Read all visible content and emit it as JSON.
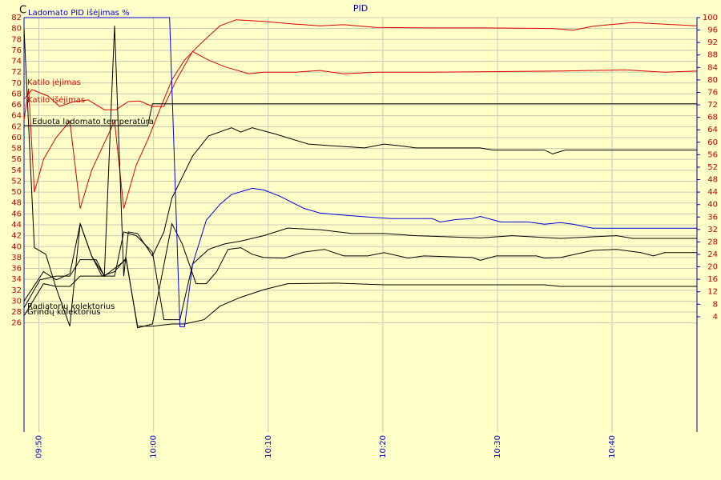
{
  "chart_data": {
    "type": "line",
    "title": "PID",
    "y_label": "C",
    "xlim": [
      588.7,
      647.4
    ],
    "xticks": [
      {
        "value": 590,
        "label": "09:50"
      },
      {
        "value": 600,
        "label": "10:00"
      },
      {
        "value": 610,
        "label": "10:10"
      },
      {
        "value": 620,
        "label": "10:20"
      },
      {
        "value": 630,
        "label": "10:30"
      },
      {
        "value": 640,
        "label": "10:40"
      }
    ],
    "ylim": [
      6,
      82
    ],
    "yticks": [
      26,
      28,
      30,
      32,
      34,
      36,
      38,
      40,
      42,
      44,
      46,
      48,
      50,
      52,
      54,
      56,
      58,
      60,
      62,
      64,
      66,
      68,
      70,
      72,
      74,
      76,
      78,
      80,
      82
    ],
    "y2lim": [
      -33,
      100
    ],
    "y2ticks": [
      4,
      8,
      12,
      16,
      20,
      24,
      28,
      32,
      36,
      40,
      44,
      48,
      52,
      56,
      60,
      64,
      68,
      72,
      76,
      80,
      84,
      88,
      92,
      96,
      100
    ],
    "grid": true,
    "series": [
      {
        "name": "Katilo įėjimas",
        "color": "#e00000",
        "x": [
          588.7,
          589.1,
          589.6,
          590.4,
          591.5,
          592.7,
          593.6,
          594.6,
          595.7,
          596.6,
          597.4,
          598.5,
          599.5,
          600.6,
          601.6,
          602.7,
          603.7,
          604.8,
          605.8,
          607.2,
          609.6,
          612.4,
          614.5,
          616.6,
          619.4,
          624.3,
          628.5,
          634.8,
          636.6,
          638.3,
          641.8,
          644.6,
          647.4
        ],
        "values": [
          63.2,
          69,
          50,
          56,
          60,
          63,
          47,
          54,
          59,
          63,
          47,
          55,
          59.6,
          65.4,
          70.6,
          74.2,
          76.4,
          78.6,
          80.5,
          81.6,
          81.3,
          80.8,
          80.5,
          80.7,
          80.2,
          80.1,
          80.1,
          80,
          79.7,
          80.4,
          81.1,
          80.8,
          80.5
        ]
      },
      {
        "name": "Katilo išėjimas",
        "color": "#e00000",
        "x": [
          588.7,
          589.4,
          590.8,
          591.8,
          592.9,
          594.3,
          595.7,
          596.7,
          597.8,
          598.8,
          599.9,
          600.9,
          602.0,
          603.4,
          604.8,
          606.2,
          608.3,
          609.6,
          612.4,
          614.5,
          616.6,
          619.4,
          624.3,
          635.5,
          641.1,
          644.6,
          647.4
        ],
        "values": [
          67,
          68.8,
          67.6,
          65.7,
          66.5,
          66.9,
          65.1,
          65.1,
          66.6,
          66.7,
          65.7,
          65.7,
          70.6,
          75.8,
          74.2,
          73,
          71.7,
          72,
          72,
          72.3,
          71.7,
          72,
          72,
          72.2,
          72.4,
          72,
          72.2
        ]
      },
      {
        "name": "Eduota ladomato temperatūra",
        "color": "#000000",
        "x": [
          588.7,
          599.5,
          599.9,
          647.4
        ],
        "values": [
          62.2,
          62.2,
          66.2,
          66.2
        ]
      },
      {
        "name": "Radiatorių kolektorius",
        "color": "#000000",
        "x": [
          588.7,
          589.6,
          590.6,
          591.5,
          592.7,
          593.6,
          594.6,
          595.7,
          596.6,
          597.4,
          597.8,
          598.6,
          599.9,
          600.9,
          601.6,
          603.4,
          604.8,
          606.8,
          607.6,
          608.6,
          610.7,
          613.5,
          615.6,
          618.4,
          620.1,
          621.5,
          622.9,
          628.5,
          629.6,
          634.1,
          634.8,
          635.9,
          647.4
        ],
        "values": [
          80,
          39.8,
          38.6,
          32.4,
          25.4,
          44.2,
          38.3,
          34.6,
          80.5,
          34.6,
          42.7,
          42.4,
          38.3,
          42.7,
          48.9,
          56.6,
          60.3,
          61.8,
          61,
          61.8,
          60.6,
          58.8,
          58.5,
          58.1,
          58.8,
          58.5,
          58.1,
          58.1,
          57.7,
          57.7,
          57,
          57.7,
          57.7
        ]
      },
      {
        "color": "#000000",
        "x": [
          588.7,
          590.1,
          591.5,
          592.7,
          593.6,
          595.0,
          595.7,
          596.6,
          597.4,
          598.5,
          599.9,
          600.9,
          602.3,
          603.4,
          604.8,
          606.2,
          607.6,
          609.6,
          611.7,
          614.5,
          617.3,
          620.1,
          622.9,
          628.5,
          631.3,
          635.5,
          638.3,
          640.4,
          641.8,
          647.4
        ],
        "values": [
          28.8,
          33.9,
          34.6,
          34.6,
          37.6,
          37.6,
          34.6,
          34.6,
          42.7,
          42,
          39,
          26.6,
          26.6,
          36.8,
          39.5,
          40.5,
          41,
          42,
          43.4,
          43.1,
          42.4,
          42.4,
          42,
          41.6,
          42,
          41.5,
          41.8,
          42,
          41.5,
          41.5
        ]
      },
      {
        "name": "Grindų kolektorius",
        "color": "#000000",
        "x": [
          588.7,
          590.4,
          591.5,
          592.7,
          593.6,
          594.6,
          595.5,
          596.6,
          597.6,
          598.6,
          599.9,
          601.6,
          602.5,
          603.7,
          604.6,
          605.5,
          606.5,
          607.6,
          608.6,
          609.6,
          611.4,
          613.1,
          614.9,
          616.6,
          618.7,
          620.1,
          622.2,
          623.6,
          627.8,
          628.5,
          629.9,
          633.4,
          634.1,
          635.5,
          638.3,
          640.4,
          642.5,
          643.6,
          644.6,
          647.4
        ],
        "values": [
          30,
          35.4,
          33.9,
          35,
          44.2,
          38.3,
          34.6,
          35.4,
          37.9,
          25.1,
          25.8,
          44.2,
          40.5,
          33.2,
          33.2,
          35.4,
          39.5,
          39.8,
          38.6,
          38,
          37.9,
          39,
          39.5,
          38.3,
          38.3,
          38.9,
          37.9,
          38.3,
          38,
          37.5,
          38.3,
          38.3,
          37.9,
          38,
          39.3,
          39.5,
          38.9,
          38.3,
          38.9,
          38.9
        ]
      },
      {
        "color": "#000000",
        "x": [
          588.7,
          590.4,
          591.5,
          592.7,
          593.6,
          595.0,
          595.7,
          597.6,
          598.6,
          599.9,
          601.6,
          602.7,
          604.4,
          605.8,
          607.6,
          609.6,
          611.7,
          615.9,
          620.1,
          628.5,
          634.1,
          635.5,
          647.4
        ],
        "values": [
          27.3,
          33.2,
          32.7,
          32.7,
          34.6,
          34.6,
          34.6,
          37.6,
          25.4,
          25.4,
          25.8,
          25.8,
          26.6,
          29.1,
          30.7,
          32.1,
          33.2,
          33.3,
          33,
          33,
          33,
          32.7,
          32.7
        ]
      },
      {
        "name": "Ladomato PID išėjimas %",
        "color": "#0000e0",
        "axis": "y2",
        "x": [
          588.7,
          601.4,
          602.3,
          602.7,
          603.4,
          604.6,
          605.8,
          606.8,
          608.6,
          609.6,
          611.0,
          613.1,
          614.5,
          615.9,
          618.7,
          620.8,
          624.3,
          625.0,
          626.4,
          627.8,
          628.5,
          630.3,
          632.7,
          634.1,
          635.5,
          636.6,
          638.3,
          647.4
        ],
        "values": [
          100,
          100,
          0.8,
          0.8,
          20.8,
          35,
          40.1,
          43.2,
          45.2,
          44.7,
          42.7,
          38.8,
          37.3,
          36.8,
          36,
          35.5,
          35.5,
          34.4,
          35.2,
          35.5,
          36.2,
          34.4,
          34.4,
          33.7,
          34.2,
          33.7,
          32.4,
          32.4
        ]
      }
    ]
  }
}
